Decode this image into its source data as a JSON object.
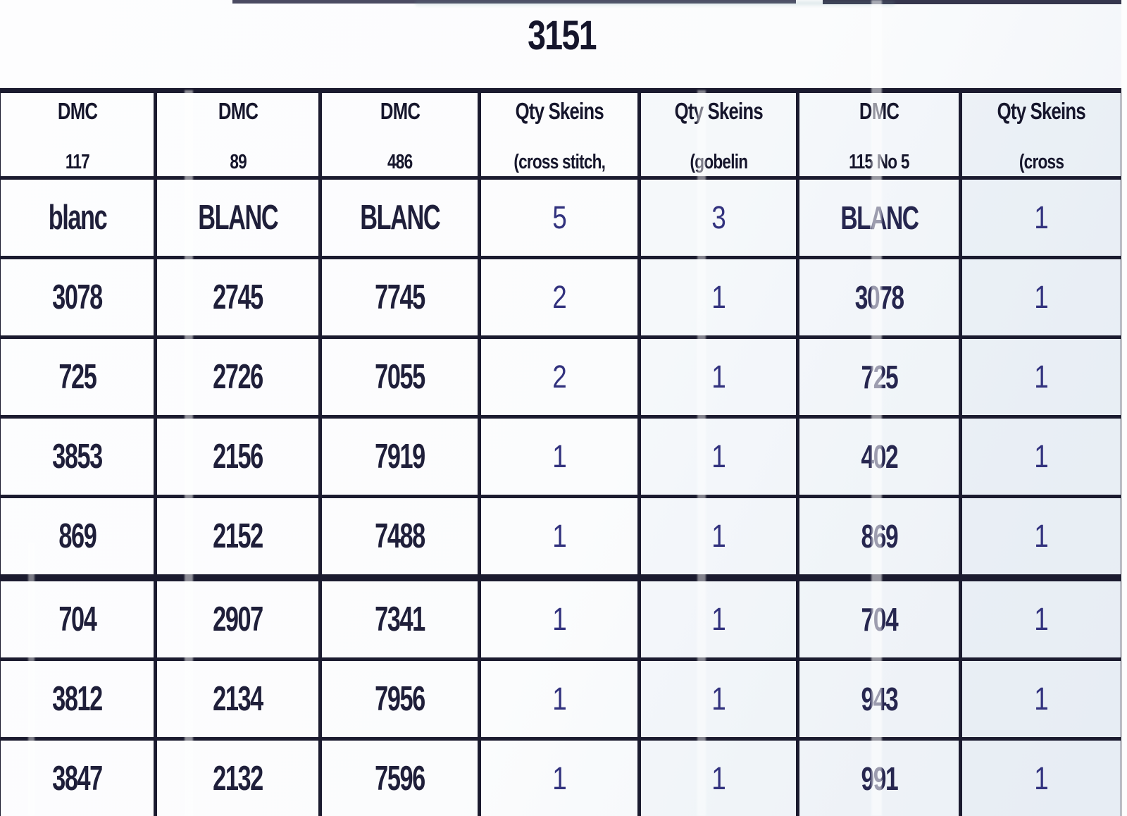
{
  "document": {
    "title": "3151"
  },
  "table": {
    "columns": [
      {
        "line1": "DMC",
        "line2": "117"
      },
      {
        "line1": "DMC",
        "line2": "89"
      },
      {
        "line1": "DMC",
        "line2": "486"
      },
      {
        "line1": "Qty Skeins",
        "line2": "(cross stitch,"
      },
      {
        "line1": "Qty Skeins",
        "line2": "(gobelin"
      },
      {
        "line1": "DMC",
        "line2": "115 No 5"
      },
      {
        "line1": "Qty Skeins",
        "line2": "(cross"
      }
    ],
    "rows": [
      [
        "blanc",
        "BLANC",
        "BLANC",
        "5",
        "3",
        "BLANC",
        "1"
      ],
      [
        "3078",
        "2745",
        "7745",
        "2",
        "1",
        "3078",
        "1"
      ],
      [
        "725",
        "2726",
        "7055",
        "2",
        "1",
        "725",
        "1"
      ],
      [
        "3853",
        "2156",
        "7919",
        "1",
        "1",
        "402",
        "1"
      ],
      [
        "869",
        "2152",
        "7488",
        "1",
        "1",
        "869",
        "1"
      ],
      [
        "704",
        "2907",
        "7341",
        "1",
        "1",
        "704",
        "1"
      ],
      [
        "3812",
        "2134",
        "7956",
        "1",
        "1",
        "943",
        "1"
      ],
      [
        "3847",
        "2132",
        "7596",
        "1",
        "1",
        "991",
        "1"
      ]
    ]
  },
  "colors": {
    "ink": "#1c1c34",
    "ink_blue": "#32327e",
    "border": "#1b1b2f",
    "paper": "#fbfcfd",
    "tint": "#e4ebf3"
  }
}
